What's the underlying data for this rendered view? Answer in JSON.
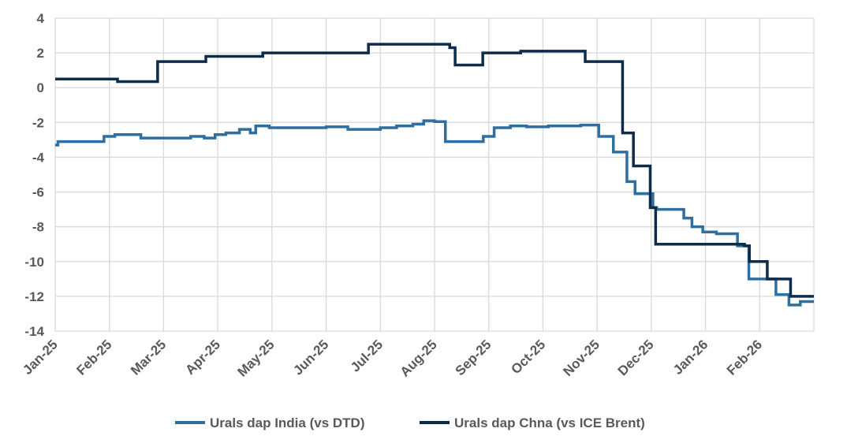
{
  "chart_data": {
    "type": "line",
    "step": "post",
    "grid": true,
    "legend": "bottom",
    "xlim": [
      0,
      14
    ],
    "ylim": [
      -14,
      4
    ],
    "yticks": [
      4,
      2,
      0,
      -2,
      -4,
      -6,
      -8,
      -10,
      -12,
      -14
    ],
    "xticks": [
      {
        "value": 0,
        "label": "Jan-25"
      },
      {
        "value": 1,
        "label": "Feb-25"
      },
      {
        "value": 2,
        "label": "Mar-25"
      },
      {
        "value": 3,
        "label": "Apr-25"
      },
      {
        "value": 4,
        "label": "May-25"
      },
      {
        "value": 5,
        "label": "Jun-25"
      },
      {
        "value": 6,
        "label": "Jul-25"
      },
      {
        "value": 7,
        "label": "Aug-25"
      },
      {
        "value": 8,
        "label": "Sep-25"
      },
      {
        "value": 9,
        "label": "Oct-25"
      },
      {
        "value": 10,
        "label": "Nov-25"
      },
      {
        "value": 11,
        "label": "Dec-25"
      },
      {
        "value": 12,
        "label": "Jan-26"
      },
      {
        "value": 13,
        "label": "Feb-26"
      }
    ],
    "series": [
      {
        "name": "Urals dap India (vs DTD)",
        "color": "#2f6f9f",
        "x": [
          0,
          0.05,
          0.9,
          1.1,
          1.58,
          2.5,
          2.75,
          2.95,
          3.15,
          3.4,
          3.6,
          3.7,
          3.95,
          5.0,
          5.4,
          6.0,
          6.3,
          6.6,
          6.8,
          7.0,
          7.2,
          7.9,
          8.1,
          8.4,
          8.7,
          9.1,
          9.7,
          10.03,
          10.3,
          10.55,
          10.7,
          11.03,
          11.1,
          11.6,
          11.75,
          11.95,
          12.2,
          12.59,
          12.8,
          13.3,
          13.54,
          13.75,
          14
        ],
        "values": [
          -3.3,
          -3.1,
          -2.8,
          -2.7,
          -2.9,
          -2.8,
          -2.9,
          -2.7,
          -2.6,
          -2.4,
          -2.6,
          -2.2,
          -2.3,
          -2.25,
          -2.4,
          -2.3,
          -2.2,
          -2.1,
          -1.9,
          -1.95,
          -3.1,
          -2.8,
          -2.3,
          -2.2,
          -2.25,
          -2.2,
          -2.15,
          -2.8,
          -3.7,
          -5.4,
          -6.1,
          -6.9,
          -7.0,
          -7.5,
          -8.0,
          -8.3,
          -8.4,
          -9.1,
          -11.0,
          -11.9,
          -12.5,
          -12.3,
          -12.3
        ]
      },
      {
        "name": "Urals dap Chna (vs ICE Brent)",
        "color": "#0d2b4b",
        "x": [
          0,
          1.15,
          1.89,
          2.78,
          3.83,
          5.78,
          7.28,
          7.38,
          7.89,
          8.59,
          9.78,
          10.47,
          10.67,
          10.98,
          11.08,
          12.72,
          12.81,
          13.14,
          13.57,
          14
        ],
        "values": [
          0.5,
          0.35,
          1.5,
          1.8,
          2.0,
          2.5,
          2.3,
          1.3,
          2.0,
          2.1,
          1.5,
          -2.6,
          -4.5,
          -6.9,
          -9.0,
          -9.1,
          -10.0,
          -11.0,
          -12.0,
          -12.0
        ]
      }
    ]
  }
}
